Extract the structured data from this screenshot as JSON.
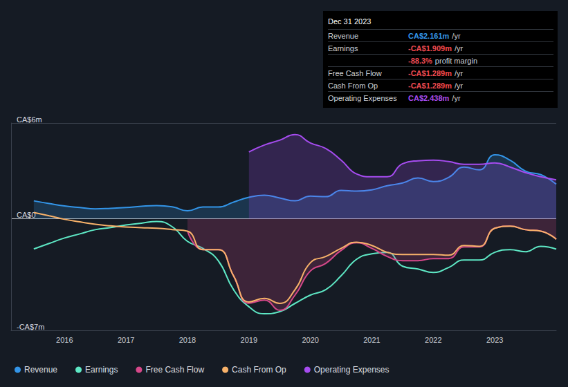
{
  "chart_data": {
    "type": "line",
    "x": [
      2015.5,
      2015.75,
      2016,
      2016.25,
      2016.5,
      2016.75,
      2017,
      2017.25,
      2017.5,
      2017.75,
      2018,
      2018.25,
      2018.5,
      2018.75,
      2019,
      2019.25,
      2019.5,
      2019.75,
      2020,
      2020.25,
      2020.5,
      2020.75,
      2021,
      2021.25,
      2021.5,
      2021.75,
      2022,
      2022.25,
      2022.5,
      2022.75,
      2023,
      2023.25,
      2023.5,
      2023.75,
      2024
    ],
    "xlim": [
      2015.13,
      2024
    ],
    "xticks": [
      2016,
      2017,
      2018,
      2019,
      2020,
      2021,
      2022,
      2023
    ],
    "ylim": [
      -7,
      6
    ],
    "yticks": [
      {
        "value": -7,
        "label": "-CA$7m"
      },
      {
        "value": 0,
        "label": "CA$0"
      },
      {
        "value": 6,
        "label": "CA$6m"
      }
    ],
    "grid": true,
    "legend": "bottom",
    "series": [
      {
        "name": "Revenue",
        "color": "#3395e8",
        "type": "area",
        "values": [
          1.12,
          0.95,
          0.8,
          0.7,
          0.62,
          0.65,
          0.7,
          0.78,
          0.82,
          0.75,
          0.5,
          0.73,
          0.73,
          1.04,
          1.34,
          1.47,
          1.3,
          1.12,
          1.42,
          1.38,
          1.77,
          1.73,
          1.81,
          2.07,
          2.24,
          2.55,
          2.33,
          2.59,
          3.24,
          3.06,
          4.01,
          3.67,
          2.98,
          2.76,
          2.161
        ]
      },
      {
        "name": "Earnings",
        "color": "#5ee8c5",
        "type": "line",
        "values": [
          -1.9,
          -1.55,
          -1.21,
          -0.95,
          -0.69,
          -0.55,
          -0.39,
          -0.28,
          -0.17,
          -0.5,
          -1.42,
          -1.86,
          -2.63,
          -4.45,
          -5.52,
          -5.96,
          -5.83,
          -5.31,
          -4.79,
          -4.45,
          -3.58,
          -2.55,
          -2.2,
          -2.11,
          -2.98,
          -3.15,
          -3.37,
          -3.06,
          -2.59,
          -2.59,
          -2.11,
          -1.94,
          -2.07,
          -1.73,
          -1.909
        ]
      },
      {
        "name": "Free Cash Flow",
        "color": "#d6488a",
        "type": "area",
        "values": [
          null,
          null,
          null,
          null,
          null,
          null,
          null,
          null,
          null,
          null,
          -0.78,
          -1.94,
          -1.94,
          -3.6,
          -5.3,
          -5.1,
          -5.74,
          -4.79,
          -3.28,
          -2.8,
          -1.99,
          -1.51,
          -1.86,
          -2.37,
          -2.63,
          -2.63,
          -2.5,
          -2.5,
          -1.77,
          -1.77,
          -0.6,
          -0.47,
          -0.69,
          -0.78,
          -1.289
        ]
      },
      {
        "name": "Cash From Op",
        "color": "#f8b26a",
        "type": "line",
        "values": [
          0.39,
          0.18,
          -0.04,
          -0.2,
          -0.35,
          -0.45,
          -0.52,
          -0.56,
          -0.6,
          -0.68,
          -0.78,
          -1.94,
          -1.94,
          -3.58,
          -5.22,
          -5.0,
          -5.31,
          -4.45,
          -2.76,
          -2.37,
          -1.86,
          -1.47,
          -1.68,
          -2.11,
          -2.24,
          -2.24,
          -2.24,
          -2.29,
          -1.68,
          -1.73,
          -0.6,
          -0.47,
          -0.69,
          -0.78,
          -1.289
        ]
      },
      {
        "name": "Operating Expenses",
        "color": "#a64cf0",
        "type": "area",
        "values": [
          null,
          null,
          null,
          null,
          null,
          null,
          null,
          null,
          null,
          null,
          null,
          null,
          null,
          null,
          4.19,
          4.62,
          4.92,
          5.27,
          4.75,
          4.4,
          3.67,
          2.81,
          2.63,
          2.63,
          3.45,
          3.63,
          3.67,
          3.58,
          3.41,
          3.41,
          3.5,
          3.24,
          2.89,
          2.63,
          2.438
        ]
      }
    ]
  },
  "info_box": {
    "title": "Dec 31 2023",
    "rows": [
      {
        "label": "Revenue",
        "value": "CA$2.161m",
        "unit": "/yr",
        "color": "#3395e8"
      },
      {
        "label": "Earnings",
        "value": "-CA$1.909m",
        "unit": "/yr",
        "color": "#ef4a50"
      },
      {
        "value": "-88.3%",
        "unit": "profit margin",
        "color": "#ef4a50"
      },
      {
        "label": "Free Cash Flow",
        "value": "-CA$1.289m",
        "unit": "/yr",
        "color": "#ef4a50"
      },
      {
        "label": "Cash From Op",
        "value": "-CA$1.289m",
        "unit": "/yr",
        "color": "#ef4a50"
      },
      {
        "label": "Operating Expenses",
        "value": "CA$2.438m",
        "unit": "/yr",
        "color": "#a64cf0"
      }
    ]
  }
}
